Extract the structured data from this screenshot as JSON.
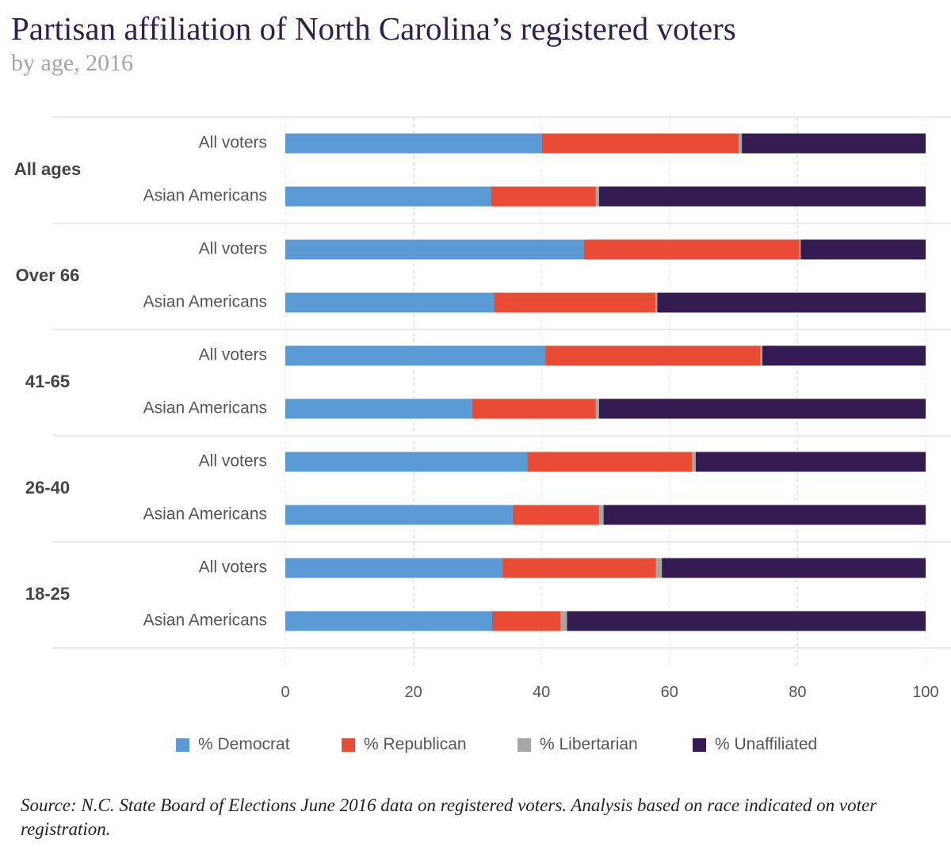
{
  "title": "Partisan affiliation of North Carolina’s registered voters",
  "subtitle": "by age, 2016",
  "source": "Source: N.C. State Board of Elections June 2016 data on registered voters. Analysis based on race indicated on voter registration.",
  "colors": {
    "democrat": "#5b9bd5",
    "republican": "#e84c34",
    "libertarian": "#a6a6a6",
    "unaffiliated": "#341b52"
  },
  "legend": [
    {
      "label": "% Democrat",
      "color": "#5b9bd5"
    },
    {
      "label": "% Republican",
      "color": "#e84c34"
    },
    {
      "label": "% Libertarian",
      "color": "#a6a6a6"
    },
    {
      "label": "% Unaffiliated",
      "color": "#341b52"
    }
  ],
  "chart_data": {
    "type": "bar",
    "orientation": "horizontal",
    "stacked": true,
    "title": "Partisan affiliation of North Carolina’s registered voters",
    "subtitle": "by age, 2016",
    "xlim": [
      0,
      100
    ],
    "xticks": [
      0,
      20,
      40,
      60,
      80,
      100
    ],
    "grid": true,
    "legend_position": "bottom",
    "series_names": [
      "% Democrat",
      "% Republican",
      "% Libertarian",
      "% Unaffiliated"
    ],
    "groups": [
      {
        "label": "All ages",
        "rows": [
          {
            "label": "All voters",
            "values": [
              40.1,
              30.7,
              0.5,
              28.7
            ]
          },
          {
            "label": "Asian Americans",
            "values": [
              32.1,
              16.4,
              0.5,
              51.0
            ]
          }
        ]
      },
      {
        "label": "Over 66",
        "rows": [
          {
            "label": "All voters",
            "values": [
              46.6,
              33.7,
              0.2,
              19.5
            ]
          },
          {
            "label": "Asian Americans",
            "values": [
              32.6,
              25.2,
              0.3,
              41.9
            ]
          }
        ]
      },
      {
        "label": "41-65",
        "rows": [
          {
            "label": "All voters",
            "values": [
              40.6,
              33.6,
              0.3,
              25.5
            ]
          },
          {
            "label": "Asian Americans",
            "values": [
              29.2,
              19.3,
              0.5,
              51.0
            ]
          }
        ]
      },
      {
        "label": "26-40",
        "rows": [
          {
            "label": "All voters",
            "values": [
              37.8,
              25.7,
              0.6,
              35.9
            ]
          },
          {
            "label": "Asian Americans",
            "values": [
              35.5,
              13.5,
              0.7,
              50.3
            ]
          }
        ]
      },
      {
        "label": "18-25",
        "rows": [
          {
            "label": "All voters",
            "values": [
              33.9,
              24.0,
              0.9,
              41.2
            ]
          },
          {
            "label": "Asian Americans",
            "values": [
              32.3,
              10.7,
              1.0,
              56.0
            ]
          }
        ]
      }
    ]
  }
}
